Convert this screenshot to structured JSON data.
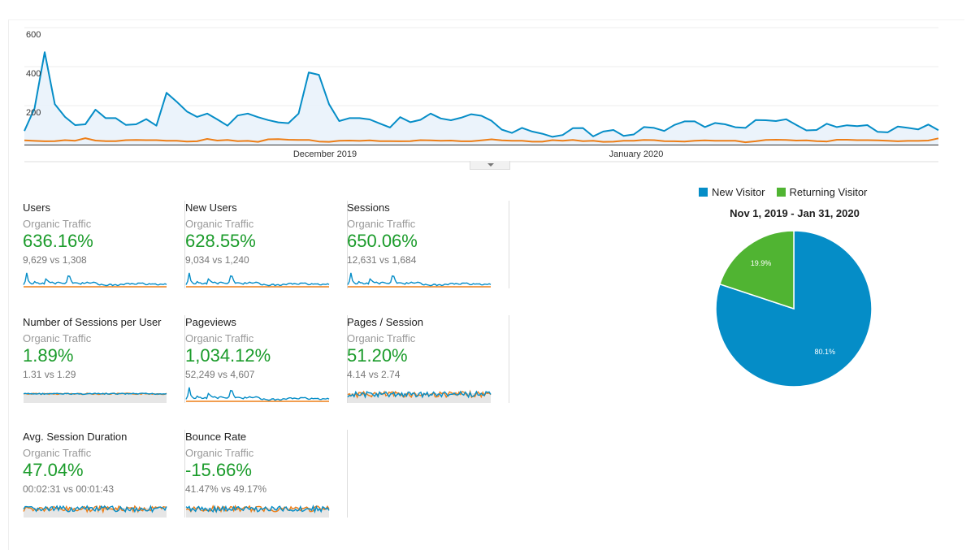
{
  "colors": {
    "primary": "#058dc7",
    "secondary": "#ed7e17",
    "positive": "#1a9b2a",
    "new_visitor": "#058dc7",
    "returning_visitor": "#50b432"
  },
  "chart_data": [
    {
      "type": "area",
      "y_ticks": [
        "600",
        "400",
        "200"
      ],
      "ylim": [
        0,
        600
      ],
      "x_tick_labels": [
        "December 2019",
        "January 2020"
      ],
      "grid": true,
      "series": [
        {
          "color": "#058dc7",
          "values": [
            70,
            186,
            474,
            207,
            142,
            100,
            104,
            179,
            136,
            136,
            101,
            104,
            131,
            97,
            266,
            220,
            170,
            142,
            159,
            129,
            97,
            149,
            159,
            141,
            126,
            114,
            110,
            159,
            370,
            358,
            207,
            121,
            136,
            136,
            129,
            108,
            88,
            141,
            115,
            127,
            159,
            134,
            125,
            138,
            156,
            148,
            122,
            77,
            60,
            86,
            67,
            56,
            40,
            49,
            84,
            85,
            42,
            67,
            75,
            45,
            52,
            90,
            86,
            70,
            101,
            119,
            119,
            90,
            111,
            104,
            89,
            86,
            126,
            125,
            121,
            130,
            101,
            73,
            75,
            107,
            90,
            99,
            95,
            100,
            66,
            63,
            93,
            86,
            78,
            103,
            74
          ]
        },
        {
          "color": "#ed7e17",
          "values": [
            22,
            19,
            17,
            18,
            23,
            20,
            33,
            21,
            18,
            18,
            23,
            24,
            23,
            23,
            20,
            20,
            16,
            17,
            29,
            21,
            24,
            18,
            19,
            14,
            27,
            28,
            25,
            24,
            24,
            16,
            14,
            20,
            21,
            19,
            22,
            18,
            18,
            17,
            18,
            23,
            22,
            20,
            21,
            17,
            17,
            22,
            27,
            22,
            20,
            20,
            15,
            15,
            23,
            20,
            24,
            18,
            20,
            14,
            15,
            20,
            20,
            24,
            23,
            18,
            17,
            16,
            20,
            22,
            20,
            20,
            20,
            12,
            17,
            24,
            25,
            24,
            21,
            22,
            18,
            16,
            25,
            25,
            23,
            23,
            22,
            20,
            17,
            19,
            19,
            21,
            32
          ]
        }
      ]
    },
    {
      "type": "pie",
      "title": "Nov 1, 2019 - Jan 31, 2020",
      "legend": "top",
      "slices": [
        {
          "label": "New Visitor",
          "value": 80.1,
          "text": "80.1%",
          "color": "#058dc7"
        },
        {
          "label": "Returning Visitor",
          "value": 19.9,
          "text": "19.9%",
          "color": "#50b432"
        }
      ]
    }
  ],
  "metrics": [
    {
      "title": "Users",
      "segment": "Organic Traffic",
      "change": "636.16%",
      "comparison": "9,629 vs 1,308",
      "spark": "traffic"
    },
    {
      "title": "New Users",
      "segment": "Organic Traffic",
      "change": "628.55%",
      "comparison": "9,034 vs 1,240",
      "spark": "traffic"
    },
    {
      "title": "Sessions",
      "segment": "Organic Traffic",
      "change": "650.06%",
      "comparison": "12,631 vs 1,684",
      "spark": "traffic"
    },
    {
      "title": "Number of Sessions per User",
      "segment": "Organic Traffic",
      "change": "1.89%",
      "comparison": "1.31 vs 1.29",
      "spark": "flat"
    },
    {
      "title": "Pageviews",
      "segment": "Organic Traffic",
      "change": "1,034.12%",
      "comparison": "52,249 vs 4,607",
      "spark": "traffic"
    },
    {
      "title": "Pages / Session",
      "segment": "Organic Traffic",
      "change": "51.20%",
      "comparison": "4.14 vs 2.74",
      "spark": "noisy"
    },
    {
      "title": "Avg. Session Duration",
      "segment": "Organic Traffic",
      "change": "47.04%",
      "comparison": "00:02:31 vs 00:01:43",
      "spark": "noisy"
    },
    {
      "title": "Bounce Rate",
      "segment": "Organic Traffic",
      "change": "-15.66%",
      "comparison": "41.47% vs 49.17%",
      "spark": "noisy"
    }
  ]
}
